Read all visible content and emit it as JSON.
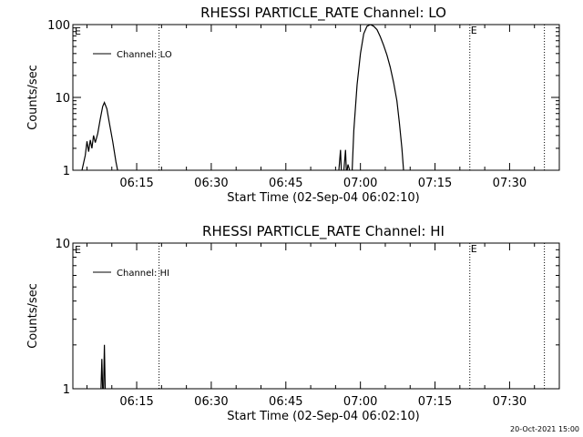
{
  "footer": {
    "timestamp": "20-Oct-2021 15:00"
  },
  "chart_data": [
    {
      "type": "line",
      "title": "RHESSI PARTICLE_RATE Channel: LO",
      "xlabel": "Start Time (02-Sep-04 06:02:10)",
      "ylabel": "Counts/sec",
      "yscale": "log",
      "xlim": [
        "06:02:10",
        "07:40:00"
      ],
      "ylim": [
        1,
        100
      ],
      "x_ticks": [
        "06:15",
        "06:30",
        "06:45",
        "07:00",
        "07:15",
        "07:30"
      ],
      "y_ticks": [
        "1",
        "10",
        "100"
      ],
      "legend": {
        "label": "Channel: LO",
        "placement": "top-left"
      },
      "event_markers": [
        {
          "time": "06:19:30",
          "label": ""
        },
        {
          "time": "07:22:00",
          "label": "E"
        },
        {
          "time": "07:37:00",
          "label": ""
        }
      ],
      "corner_marker": "E",
      "series": [
        {
          "name": "Channel: LO",
          "segments": [
            [
              [
                "06:04:00",
                1.0
              ],
              [
                "06:04:40",
                1.6
              ],
              [
                "06:05:00",
                2.5
              ],
              [
                "06:05:20",
                1.8
              ],
              [
                "06:05:40",
                2.6
              ],
              [
                "06:06:00",
                2.0
              ],
              [
                "06:06:20",
                3.0
              ],
              [
                "06:06:40",
                2.4
              ],
              [
                "06:07:10",
                3.2
              ],
              [
                "06:07:40",
                5.0
              ],
              [
                "06:08:10",
                7.5
              ],
              [
                "06:08:30",
                8.5
              ],
              [
                "06:09:00",
                7.0
              ],
              [
                "06:09:30",
                4.5
              ],
              [
                "06:10:10",
                2.5
              ],
              [
                "06:10:50",
                1.3
              ],
              [
                "06:11:10",
                1.0
              ]
            ],
            [
              [
                "06:55:40",
                1.0
              ],
              [
                "06:56:00",
                1.9
              ],
              [
                "06:56:10",
                1.0
              ]
            ],
            [
              [
                "06:56:40",
                1.0
              ],
              [
                "06:57:00",
                1.9
              ],
              [
                "06:57:10",
                1.0
              ]
            ],
            [
              [
                "06:57:20",
                1.0
              ],
              [
                "06:57:30",
                1.2
              ],
              [
                "06:57:50",
                1.0
              ]
            ],
            [
              [
                "06:58:20",
                1.0
              ],
              [
                "06:58:40",
                3.5
              ],
              [
                "06:59:20",
                15
              ],
              [
                "07:00:00",
                40
              ],
              [
                "07:00:40",
                75
              ],
              [
                "07:01:20",
                95
              ],
              [
                "07:02:00",
                100
              ],
              [
                "07:02:40",
                95
              ],
              [
                "07:03:20",
                85
              ],
              [
                "07:04:00",
                68
              ],
              [
                "07:04:40",
                52
              ],
              [
                "07:05:20",
                38
              ],
              [
                "07:06:00",
                26
              ],
              [
                "07:06:40",
                16
              ],
              [
                "07:07:20",
                9
              ],
              [
                "07:07:50",
                4.5
              ],
              [
                "07:08:20",
                2.0
              ],
              [
                "07:08:40",
                1.0
              ]
            ]
          ]
        }
      ]
    },
    {
      "type": "line",
      "title": "RHESSI PARTICLE_RATE Channel: HI",
      "xlabel": "Start Time (02-Sep-04 06:02:10)",
      "ylabel": "Counts/sec",
      "yscale": "log",
      "xlim": [
        "06:02:10",
        "07:40:00"
      ],
      "ylim": [
        1,
        10
      ],
      "x_ticks": [
        "06:15",
        "06:30",
        "06:45",
        "07:00",
        "07:15",
        "07:30"
      ],
      "y_ticks": [
        "1",
        "10"
      ],
      "legend": {
        "label": "Channel: HI",
        "placement": "top-left"
      },
      "event_markers": [
        {
          "time": "06:19:30",
          "label": ""
        },
        {
          "time": "07:22:00",
          "label": "E"
        },
        {
          "time": "07:37:00",
          "label": ""
        }
      ],
      "corner_marker": "E",
      "series": [
        {
          "name": "Channel: HI",
          "segments": [
            [
              [
                "06:07:50",
                1.0
              ],
              [
                "06:08:00",
                1.6
              ],
              [
                "06:08:10",
                1.0
              ]
            ],
            [
              [
                "06:08:20",
                1.0
              ],
              [
                "06:08:30",
                2.0
              ],
              [
                "06:08:40",
                1.0
              ]
            ]
          ]
        }
      ]
    }
  ]
}
